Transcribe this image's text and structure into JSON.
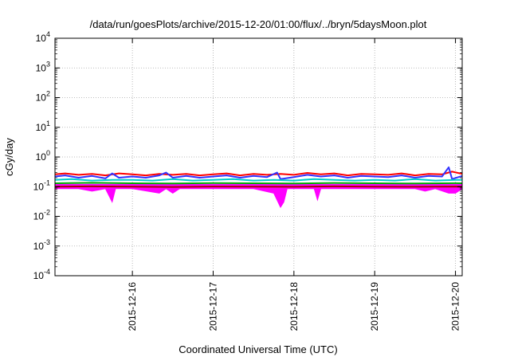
{
  "chart_data": {
    "type": "line",
    "title": "/data/run/goesPlots/archive/2015-12-20/01:00/flux/../bryn/5daysMoon.plot",
    "xlabel": "Coordinated Universal Time (UTC)",
    "ylabel": "cGy/day",
    "yscale": "log",
    "ylim": [
      0.0001,
      10000
    ],
    "xlim": [
      "2015-12-15T01:00",
      "2015-12-20T02:00"
    ],
    "grid": true,
    "x_ticks": [
      {
        "value": "2015-12-16T00:00",
        "label": "2015-12-16"
      },
      {
        "value": "2015-12-17T00:00",
        "label": "2015-12-17"
      },
      {
        "value": "2015-12-18T00:00",
        "label": "2015-12-18"
      },
      {
        "value": "2015-12-19T00:00",
        "label": "2015-12-19"
      },
      {
        "value": "2015-12-20T00:00",
        "label": "2015-12-20"
      }
    ],
    "y_ticks": [
      {
        "value": 0.0001,
        "base": "10",
        "exp": "-4"
      },
      {
        "value": 0.001,
        "base": "10",
        "exp": "-3"
      },
      {
        "value": 0.01,
        "base": "10",
        "exp": "-2"
      },
      {
        "value": 0.1,
        "base": "10",
        "exp": "-1"
      },
      {
        "value": 1,
        "base": "10",
        "exp": "0"
      },
      {
        "value": 10,
        "base": "10",
        "exp": "1"
      },
      {
        "value": 100,
        "base": "10",
        "exp": "2"
      },
      {
        "value": 1000,
        "base": "10",
        "exp": "3"
      },
      {
        "value": 10000,
        "base": "10",
        "exp": "4"
      }
    ],
    "band": {
      "color": "#ff00ff",
      "lower": [
        [
          "2015-12-15T01:00",
          0.085
        ],
        [
          "2015-12-15T08:00",
          0.085
        ],
        [
          "2015-12-15T12:00",
          0.07
        ],
        [
          "2015-12-15T16:00",
          0.085
        ],
        [
          "2015-12-15T18:00",
          0.03
        ],
        [
          "2015-12-15T19:00",
          0.085
        ],
        [
          "2015-12-16T00:00",
          0.085
        ],
        [
          "2015-12-16T08:00",
          0.06
        ],
        [
          "2015-12-16T10:00",
          0.085
        ],
        [
          "2015-12-16T12:00",
          0.06
        ],
        [
          "2015-12-16T14:00",
          0.085
        ],
        [
          "2015-12-17T00:00",
          0.085
        ],
        [
          "2015-12-17T12:00",
          0.085
        ],
        [
          "2015-12-17T18:00",
          0.06
        ],
        [
          "2015-12-17T20:00",
          0.02
        ],
        [
          "2015-12-17T21:00",
          0.03
        ],
        [
          "2015-12-17T22:00",
          0.085
        ],
        [
          "2015-12-18T06:00",
          0.085
        ],
        [
          "2015-12-18T07:00",
          0.035
        ],
        [
          "2015-12-18T08:00",
          0.085
        ],
        [
          "2015-12-18T18:00",
          0.085
        ],
        [
          "2015-12-19T06:00",
          0.085
        ],
        [
          "2015-12-19T12:00",
          0.085
        ],
        [
          "2015-12-19T15:00",
          0.07
        ],
        [
          "2015-12-19T18:00",
          0.085
        ],
        [
          "2015-12-19T22:00",
          0.06
        ],
        [
          "2015-12-20T00:00",
          0.06
        ],
        [
          "2015-12-20T02:00",
          0.085
        ]
      ],
      "upper": [
        [
          "2015-12-15T01:00",
          0.12
        ],
        [
          "2015-12-20T02:00",
          0.12
        ]
      ]
    },
    "series": [
      {
        "color": "#ff0000",
        "values": [
          [
            "2015-12-15T01:00",
            0.26
          ],
          [
            "2015-12-15T04:00",
            0.28
          ],
          [
            "2015-12-15T08:00",
            0.25
          ],
          [
            "2015-12-15T12:00",
            0.27
          ],
          [
            "2015-12-15T16:00",
            0.24
          ],
          [
            "2015-12-15T20:00",
            0.28
          ],
          [
            "2015-12-16T00:00",
            0.26
          ],
          [
            "2015-12-16T04:00",
            0.24
          ],
          [
            "2015-12-16T08:00",
            0.27
          ],
          [
            "2015-12-16T12:00",
            0.25
          ],
          [
            "2015-12-16T16:00",
            0.27
          ],
          [
            "2015-12-16T20:00",
            0.24
          ],
          [
            "2015-12-17T00:00",
            0.26
          ],
          [
            "2015-12-17T04:00",
            0.28
          ],
          [
            "2015-12-17T08:00",
            0.24
          ],
          [
            "2015-12-17T12:00",
            0.27
          ],
          [
            "2015-12-17T16:00",
            0.25
          ],
          [
            "2015-12-17T20:00",
            0.27
          ],
          [
            "2015-12-18T00:00",
            0.25
          ],
          [
            "2015-12-18T04:00",
            0.29
          ],
          [
            "2015-12-18T08:00",
            0.26
          ],
          [
            "2015-12-18T12:00",
            0.28
          ],
          [
            "2015-12-18T16:00",
            0.24
          ],
          [
            "2015-12-18T20:00",
            0.27
          ],
          [
            "2015-12-19T00:00",
            0.26
          ],
          [
            "2015-12-19T04:00",
            0.25
          ],
          [
            "2015-12-19T08:00",
            0.28
          ],
          [
            "2015-12-19T12:00",
            0.24
          ],
          [
            "2015-12-19T16:00",
            0.27
          ],
          [
            "2015-12-19T20:00",
            0.26
          ],
          [
            "2015-12-19T23:00",
            0.32
          ],
          [
            "2015-12-20T02:00",
            0.27
          ]
        ]
      },
      {
        "color": "#3333ff",
        "values": [
          [
            "2015-12-15T01:00",
            0.22
          ],
          [
            "2015-12-15T04:00",
            0.24
          ],
          [
            "2015-12-15T08:00",
            0.2
          ],
          [
            "2015-12-15T12:00",
            0.23
          ],
          [
            "2015-12-15T16:00",
            0.19
          ],
          [
            "2015-12-15T18:00",
            0.28
          ],
          [
            "2015-12-15T20:00",
            0.2
          ],
          [
            "2015-12-16T00:00",
            0.22
          ],
          [
            "2015-12-16T04:00",
            0.2
          ],
          [
            "2015-12-16T08:00",
            0.24
          ],
          [
            "2015-12-16T10:00",
            0.3
          ],
          [
            "2015-12-16T12:00",
            0.2
          ],
          [
            "2015-12-16T16:00",
            0.23
          ],
          [
            "2015-12-16T20:00",
            0.2
          ],
          [
            "2015-12-17T00:00",
            0.22
          ],
          [
            "2015-12-17T04:00",
            0.24
          ],
          [
            "2015-12-17T08:00",
            0.2
          ],
          [
            "2015-12-17T12:00",
            0.23
          ],
          [
            "2015-12-17T16:00",
            0.21
          ],
          [
            "2015-12-17T19:00",
            0.3
          ],
          [
            "2015-12-17T20:00",
            0.18
          ],
          [
            "2015-12-18T00:00",
            0.21
          ],
          [
            "2015-12-18T04:00",
            0.25
          ],
          [
            "2015-12-18T08:00",
            0.22
          ],
          [
            "2015-12-18T12:00",
            0.24
          ],
          [
            "2015-12-18T16:00",
            0.2
          ],
          [
            "2015-12-18T20:00",
            0.23
          ],
          [
            "2015-12-19T00:00",
            0.22
          ],
          [
            "2015-12-19T04:00",
            0.21
          ],
          [
            "2015-12-19T08:00",
            0.24
          ],
          [
            "2015-12-19T12:00",
            0.2
          ],
          [
            "2015-12-19T16:00",
            0.23
          ],
          [
            "2015-12-19T20:00",
            0.22
          ],
          [
            "2015-12-19T22:00",
            0.45
          ],
          [
            "2015-12-19T23:00",
            0.18
          ],
          [
            "2015-12-20T02:00",
            0.23
          ]
        ]
      },
      {
        "color": "#00cccc",
        "values": [
          [
            "2015-12-15T01:00",
            0.17
          ],
          [
            "2015-12-15T06:00",
            0.18
          ],
          [
            "2015-12-15T12:00",
            0.16
          ],
          [
            "2015-12-15T18:00",
            0.17
          ],
          [
            "2015-12-16T00:00",
            0.17
          ],
          [
            "2015-12-16T06:00",
            0.16
          ],
          [
            "2015-12-16T12:00",
            0.18
          ],
          [
            "2015-12-16T18:00",
            0.16
          ],
          [
            "2015-12-17T00:00",
            0.17
          ],
          [
            "2015-12-17T06:00",
            0.18
          ],
          [
            "2015-12-17T12:00",
            0.16
          ],
          [
            "2015-12-17T18:00",
            0.17
          ],
          [
            "2015-12-18T00:00",
            0.16
          ],
          [
            "2015-12-18T06:00",
            0.18
          ],
          [
            "2015-12-18T12:00",
            0.17
          ],
          [
            "2015-12-18T18:00",
            0.16
          ],
          [
            "2015-12-19T00:00",
            0.17
          ],
          [
            "2015-12-19T06:00",
            0.16
          ],
          [
            "2015-12-19T12:00",
            0.18
          ],
          [
            "2015-12-19T18:00",
            0.16
          ],
          [
            "2015-12-20T00:00",
            0.17
          ],
          [
            "2015-12-20T02:00",
            0.17
          ]
        ]
      },
      {
        "color": "#00aa00",
        "values": [
          [
            "2015-12-15T01:00",
            0.13
          ],
          [
            "2015-12-15T12:00",
            0.135
          ],
          [
            "2015-12-16T00:00",
            0.13
          ],
          [
            "2015-12-16T12:00",
            0.128
          ],
          [
            "2015-12-17T00:00",
            0.132
          ],
          [
            "2015-12-17T12:00",
            0.13
          ],
          [
            "2015-12-18T00:00",
            0.128
          ],
          [
            "2015-12-18T12:00",
            0.133
          ],
          [
            "2015-12-19T00:00",
            0.13
          ],
          [
            "2015-12-19T12:00",
            0.128
          ],
          [
            "2015-12-20T00:00",
            0.131
          ],
          [
            "2015-12-20T02:00",
            0.13
          ]
        ]
      },
      {
        "color": "#aa0000",
        "values": [
          [
            "2015-12-15T01:00",
            0.1
          ],
          [
            "2015-12-15T12:00",
            0.102
          ],
          [
            "2015-12-16T00:00",
            0.1
          ],
          [
            "2015-12-16T12:00",
            0.098
          ],
          [
            "2015-12-17T00:00",
            0.101
          ],
          [
            "2015-12-17T12:00",
            0.1
          ],
          [
            "2015-12-18T00:00",
            0.099
          ],
          [
            "2015-12-18T12:00",
            0.102
          ],
          [
            "2015-12-19T00:00",
            0.1
          ],
          [
            "2015-12-19T12:00",
            0.099
          ],
          [
            "2015-12-20T00:00",
            0.101
          ],
          [
            "2015-12-20T02:00",
            0.1
          ]
        ]
      }
    ]
  }
}
